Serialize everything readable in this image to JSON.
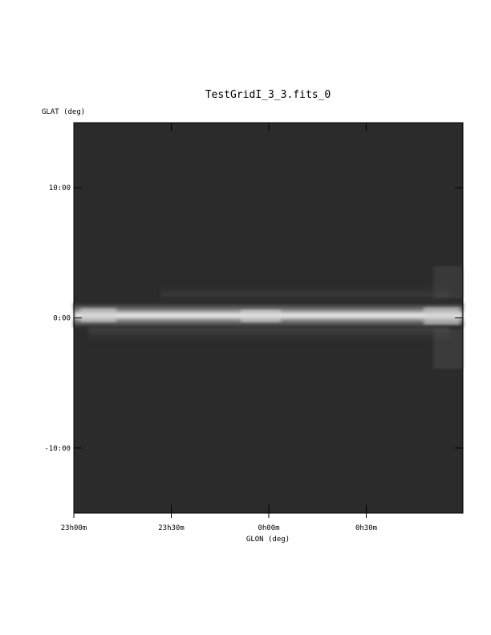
{
  "chart_data": {
    "type": "heatmap",
    "title": "TestGridI_3_3.fits_0",
    "xlabel": "GLON (deg)",
    "ylabel": "GLAT (deg)",
    "colormap": "grayscale",
    "background_color": "#2b2b2b",
    "x_ticks": [
      "23h00m",
      "23h30m",
      "0h00m",
      "0h30m"
    ],
    "y_ticks": [
      "10:00",
      "0:00",
      "-10:00"
    ],
    "y_tick_values": [
      10,
      0,
      -10
    ],
    "ylim": [
      -15,
      15
    ],
    "grid": false,
    "description": "",
    "band": {
      "center_lat": 0,
      "core_halfwidth_deg": 0.9,
      "halo_halfwidth_deg": 2.5,
      "peak_intensity": 0.9
    }
  }
}
